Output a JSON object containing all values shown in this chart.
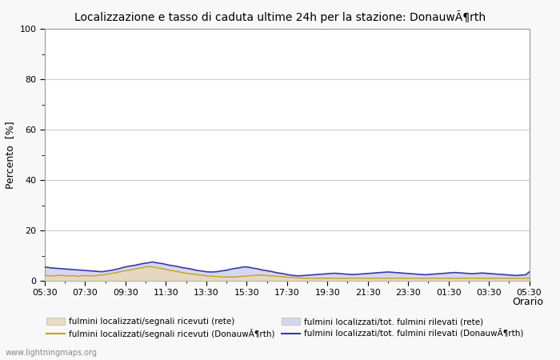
{
  "title": "Localizzazione e tasso di caduta ultime 24h per la stazione: DonauwÃ¶rth",
  "ylabel": "Percento  [%]",
  "xlabel": "Orario",
  "ylim": [
    0,
    100
  ],
  "yticks": [
    0,
    20,
    40,
    60,
    80,
    100
  ],
  "yticks_minor": [
    10,
    30,
    50,
    70,
    90
  ],
  "x_labels": [
    "05:30",
    "07:30",
    "09:30",
    "11:30",
    "13:30",
    "15:30",
    "17:30",
    "19:30",
    "21:30",
    "23:30",
    "01:30",
    "03:30",
    "05:30"
  ],
  "fill_rete_color": "#e8d8b8",
  "fill_rete_alpha": 0.85,
  "fill_station_color": "#c8cce8",
  "fill_station_alpha": 0.75,
  "line_rete_color": "#c8a020",
  "line_rete_lw": 1.0,
  "line_station_color": "#3838aa",
  "line_station_lw": 1.2,
  "background_color": "#f8f8f8",
  "plot_bg_color": "#ffffff",
  "grid_color": "#cccccc",
  "watermark": "www.lightningmaps.org",
  "legend_labels": [
    "fulmini localizzati/segnali ricevuti (rete)",
    "fulmini localizzati/segnali ricevuti (DonauwÃ¶rth)",
    "fulmini localizzati/tot. fulmini rilevati (rete)",
    "fulmini localizzati/tot. fulmini rilevati (DonauwÃ¶rth)"
  ],
  "n_points": 145,
  "fill_rete_data": [
    2.1,
    2.0,
    1.9,
    2.0,
    2.1,
    2.2,
    2.0,
    1.9,
    2.1,
    2.0,
    1.8,
    2.0,
    2.1,
    2.0,
    1.9,
    2.1,
    2.2,
    2.3,
    2.5,
    2.7,
    3.0,
    3.2,
    3.5,
    3.8,
    4.0,
    4.2,
    4.5,
    4.8,
    5.0,
    5.2,
    5.5,
    5.7,
    5.5,
    5.3,
    5.0,
    4.8,
    4.5,
    4.2,
    4.0,
    3.8,
    3.5,
    3.2,
    3.0,
    2.8,
    2.7,
    2.5,
    2.3,
    2.2,
    2.0,
    1.9,
    1.8,
    1.7,
    1.6,
    1.5,
    1.5,
    1.5,
    1.5,
    1.6,
    1.7,
    1.8,
    1.9,
    2.0,
    2.1,
    2.2,
    2.3,
    2.2,
    2.1,
    2.0,
    1.9,
    1.8,
    1.7,
    1.6,
    1.5,
    1.4,
    1.3,
    1.2,
    1.1,
    1.0,
    1.0,
    1.0,
    1.0,
    1.0,
    1.0,
    1.0,
    1.0,
    1.0,
    1.0,
    1.0,
    1.0,
    1.0,
    1.0,
    1.0,
    1.0,
    1.0,
    1.0,
    1.0,
    1.0,
    1.0,
    1.0,
    1.0,
    1.0,
    1.0,
    1.0,
    1.0,
    1.0,
    1.0,
    1.0,
    1.0,
    1.0,
    1.0,
    1.0,
    1.0,
    1.0,
    1.0,
    1.0,
    1.0,
    1.0,
    1.0,
    1.0,
    1.0,
    1.0,
    1.0,
    1.0,
    1.0,
    1.0,
    1.0,
    1.0,
    1.0,
    1.0,
    1.0,
    1.0,
    1.0,
    1.0,
    1.0,
    1.0,
    1.0,
    1.0,
    1.0,
    1.0,
    1.0,
    1.0,
    1.0,
    1.0,
    1.0,
    1.0
  ],
  "fill_station_data": [
    5.5,
    5.3,
    5.1,
    5.0,
    4.9,
    4.8,
    4.7,
    4.6,
    4.5,
    4.4,
    4.3,
    4.2,
    4.1,
    4.0,
    3.9,
    3.8,
    3.7,
    3.6,
    3.8,
    4.0,
    4.2,
    4.5,
    4.8,
    5.2,
    5.5,
    5.8,
    6.0,
    6.2,
    6.5,
    6.8,
    7.0,
    7.2,
    7.5,
    7.2,
    7.0,
    6.8,
    6.5,
    6.2,
    6.0,
    5.8,
    5.5,
    5.2,
    5.0,
    4.8,
    4.5,
    4.2,
    4.0,
    3.8,
    3.6,
    3.5,
    3.5,
    3.6,
    3.8,
    4.0,
    4.2,
    4.5,
    4.8,
    5.0,
    5.2,
    5.5,
    5.5,
    5.3,
    5.0,
    4.8,
    4.5,
    4.2,
    4.0,
    3.8,
    3.5,
    3.2,
    3.0,
    2.8,
    2.5,
    2.3,
    2.1,
    2.0,
    2.0,
    2.1,
    2.2,
    2.3,
    2.4,
    2.5,
    2.6,
    2.7,
    2.8,
    2.9,
    3.0,
    2.9,
    2.8,
    2.7,
    2.6,
    2.5,
    2.5,
    2.6,
    2.7,
    2.8,
    2.9,
    3.0,
    3.1,
    3.2,
    3.3,
    3.4,
    3.5,
    3.4,
    3.3,
    3.2,
    3.1,
    3.0,
    2.9,
    2.8,
    2.7,
    2.6,
    2.5,
    2.4,
    2.5,
    2.6,
    2.7,
    2.8,
    2.9,
    3.0,
    3.1,
    3.2,
    3.3,
    3.2,
    3.1,
    3.0,
    2.9,
    2.8,
    2.9,
    3.0,
    3.1,
    3.0,
    2.9,
    2.8,
    2.7,
    2.6,
    2.5,
    2.4,
    2.3,
    2.2,
    2.1,
    2.2,
    2.3,
    2.4,
    3.5
  ]
}
